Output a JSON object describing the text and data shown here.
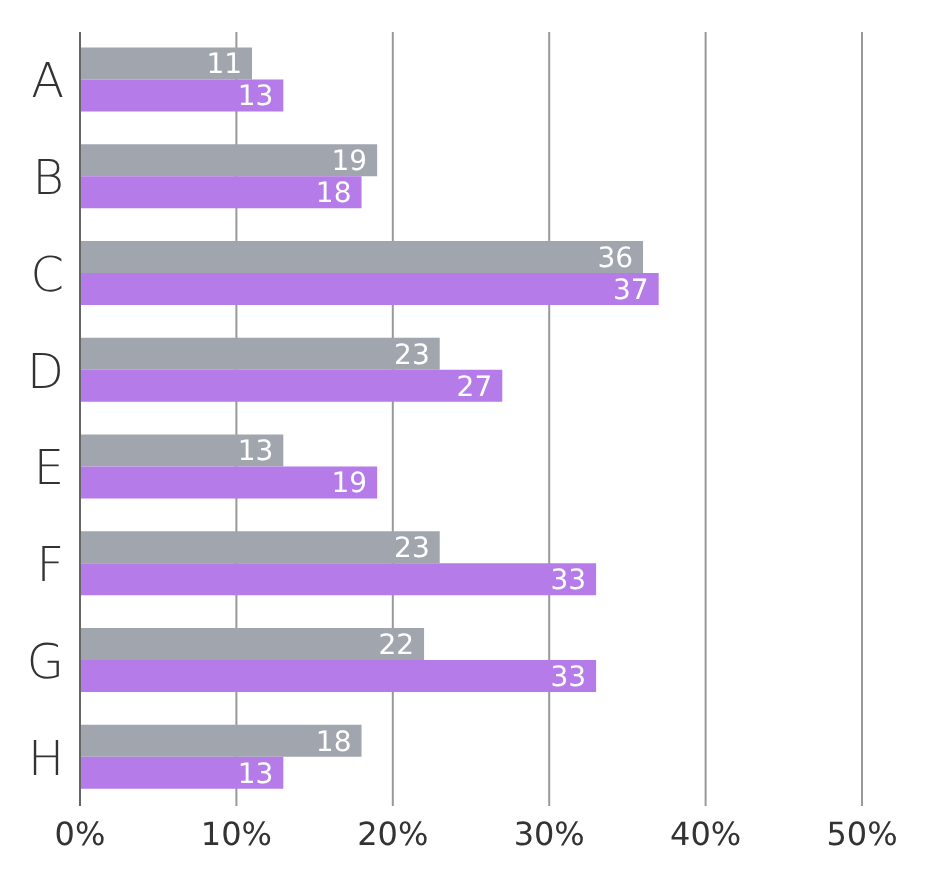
{
  "chart_data": {
    "type": "bar",
    "orientation": "horizontal",
    "categories": [
      "A",
      "B",
      "C",
      "D",
      "E",
      "F",
      "G",
      "H"
    ],
    "series": [
      {
        "color": "#a1a5ae",
        "values": [
          11,
          19,
          36,
          23,
          13,
          23,
          22,
          18
        ]
      },
      {
        "color": "#b57be8",
        "values": [
          13,
          18,
          37,
          27,
          19,
          33,
          33,
          13
        ]
      }
    ],
    "xlim": [
      0,
      50
    ],
    "xticks": [
      {
        "value": 0,
        "label": "0%"
      },
      {
        "value": 10,
        "label": "10%"
      },
      {
        "value": 20,
        "label": "20%"
      },
      {
        "value": 30,
        "label": "30%"
      },
      {
        "value": 40,
        "label": "40%"
      },
      {
        "value": 50,
        "label": "50%"
      }
    ],
    "grid": "x",
    "data_labels": true
  }
}
